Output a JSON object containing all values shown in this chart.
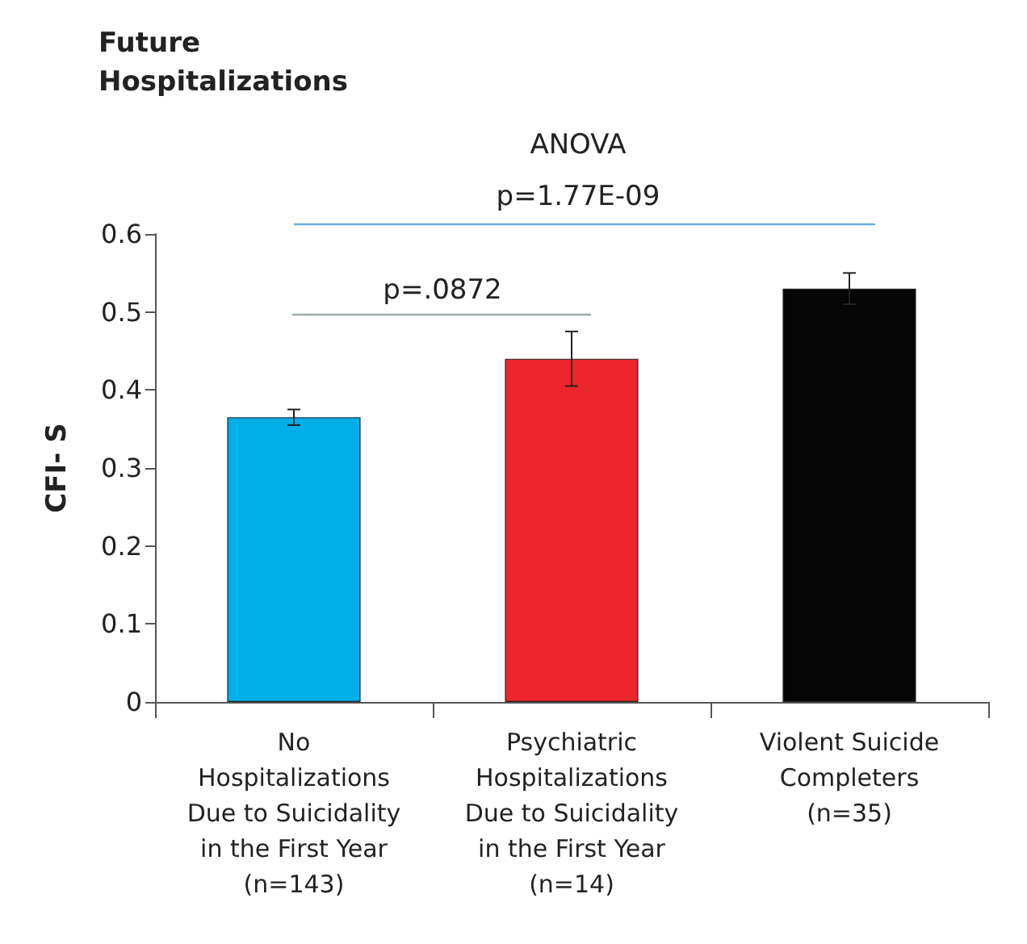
{
  "chart_data": {
    "type": "bar",
    "title": "Future\nHospitalizations",
    "ylabel": "CFI- S",
    "categories": [
      "No\nHospitalizations\nDue to Suicidality\nin the First Year\n(n=143)",
      "Psychiatric\nHospitalizations\nDue to Suicidality\nin the First Year\n(n=14)",
      "Violent Suicide\nCompleters\n(n=35)"
    ],
    "values": [
      0.365,
      0.44,
      0.53
    ],
    "colors": [
      "#00aee8",
      "#ec262c",
      "#050505"
    ],
    "errors": [
      0.01,
      0.035,
      0.02
    ],
    "annotations": [
      "ANOVA",
      "p=1.77E-09",
      "p=.0872"
    ],
    "ylim": [
      0,
      0.6
    ],
    "yticks": [
      0,
      0.1,
      0.2,
      0.3,
      0.4,
      0.5,
      0.6
    ],
    "grid": false
  }
}
